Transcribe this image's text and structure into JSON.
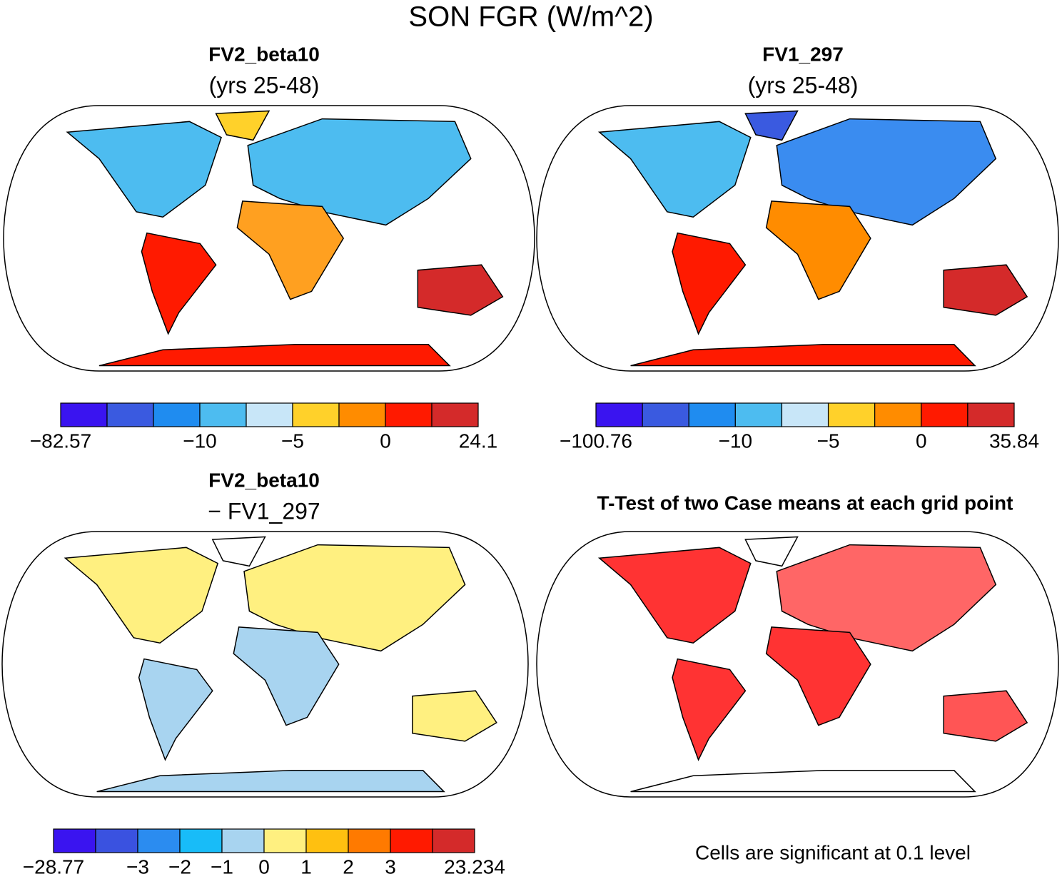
{
  "title": "SON FGR (W/m^2)",
  "panels": [
    {
      "title": "FV2_beta10",
      "subtitle": "(yrs 25-48)",
      "colorbar": {
        "colors": [
          "#3a14f0",
          "#3a5ae0",
          "#1f8cf0",
          "#4dbcf0",
          "#c8e6f8",
          "#ffd12a",
          "#ff8c00",
          "#ff1a00",
          "#d42a2a"
        ],
        "labels": [
          "−82.57",
          null,
          null,
          "−10",
          null,
          "−5",
          null,
          "0",
          null,
          "24.1"
        ]
      }
    },
    {
      "title": "FV1_297",
      "subtitle": "(yrs 25-48)",
      "colorbar": {
        "colors": [
          "#3a14f0",
          "#3a5ae0",
          "#1f8cf0",
          "#4dbcf0",
          "#c8e6f8",
          "#ffd12a",
          "#ff8c00",
          "#ff1a00",
          "#d42a2a"
        ],
        "labels": [
          "−100.76",
          null,
          null,
          "−10",
          null,
          "−5",
          null,
          "0",
          null,
          "35.84"
        ]
      }
    },
    {
      "title": "FV2_beta10",
      "subtitle": "− FV1_297",
      "colorbar": {
        "colors": [
          "#3a14f0",
          "#3a52e0",
          "#2b8cf0",
          "#18bcf8",
          "#a8d4f0",
          "#fff080",
          "#ffc010",
          "#ff7a00",
          "#ff1a00",
          "#d42a2a"
        ],
        "labels": [
          "−28.77",
          null,
          "−3",
          "−2",
          "−1",
          "0",
          "1",
          "2",
          "3",
          null,
          "23.234"
        ]
      }
    },
    {
      "title": "T-Test of two Case means at each grid point",
      "note": "Cells are significant at 0.1 level"
    }
  ]
}
